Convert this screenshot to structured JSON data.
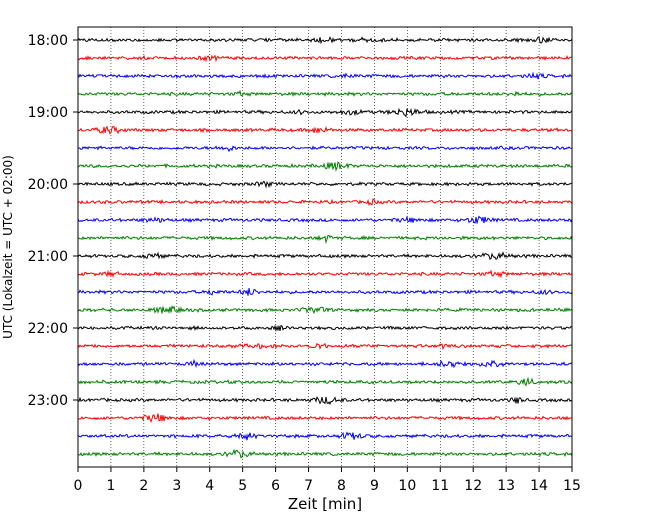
{
  "chart_data": {
    "type": "line",
    "title": "",
    "xlabel": "Zeit  [min]",
    "ylabel": "UTC (Lokalzeit = UTC + 02:00)",
    "xlim": [
      0,
      15
    ],
    "x_ticks": [
      "0",
      "1",
      "2",
      "3",
      "4",
      "5",
      "6",
      "7",
      "8",
      "9",
      "10",
      "11",
      "12",
      "13",
      "14",
      "15"
    ],
    "y_ticks": [
      "18:00",
      "19:00",
      "20:00",
      "21:00",
      "22:00",
      "23:00"
    ],
    "grid": "vertical dotted",
    "trace_interval_minutes": 15,
    "row_colors": [
      "#000000",
      "#ff0000",
      "#0000ff",
      "#008000"
    ],
    "series": [
      {
        "start": "18:00",
        "color": "#000000"
      },
      {
        "start": "18:15",
        "color": "#ff0000"
      },
      {
        "start": "18:30",
        "color": "#0000ff"
      },
      {
        "start": "18:45",
        "color": "#008000"
      },
      {
        "start": "19:00",
        "color": "#000000"
      },
      {
        "start": "19:15",
        "color": "#ff0000"
      },
      {
        "start": "19:30",
        "color": "#0000ff"
      },
      {
        "start": "19:45",
        "color": "#008000"
      },
      {
        "start": "20:00",
        "color": "#000000"
      },
      {
        "start": "20:15",
        "color": "#ff0000"
      },
      {
        "start": "20:30",
        "color": "#0000ff"
      },
      {
        "start": "20:45",
        "color": "#008000"
      },
      {
        "start": "21:00",
        "color": "#000000"
      },
      {
        "start": "21:15",
        "color": "#ff0000"
      },
      {
        "start": "21:30",
        "color": "#0000ff"
      },
      {
        "start": "21:45",
        "color": "#008000"
      },
      {
        "start": "22:00",
        "color": "#000000"
      },
      {
        "start": "22:15",
        "color": "#ff0000"
      },
      {
        "start": "22:30",
        "color": "#0000ff"
      },
      {
        "start": "22:45",
        "color": "#008000"
      },
      {
        "start": "23:00",
        "color": "#000000"
      },
      {
        "start": "23:15",
        "color": "#ff0000"
      },
      {
        "start": "23:30",
        "color": "#0000ff"
      },
      {
        "start": "23:45",
        "color": "#008000"
      }
    ]
  }
}
